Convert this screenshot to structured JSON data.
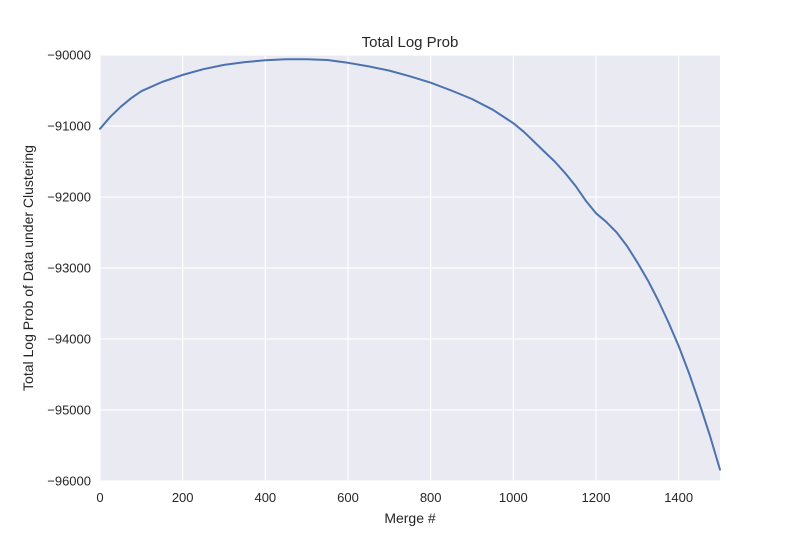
{
  "chart_data": {
    "type": "line",
    "title": "Total Log Prob",
    "xlabel": "Merge #",
    "ylabel": "Total Log Prob of Data under Clustering",
    "xlim": [
      0,
      1500
    ],
    "ylim": [
      -96000,
      -90000
    ],
    "xticks": [
      0,
      200,
      400,
      600,
      800,
      1000,
      1200,
      1400
    ],
    "yticks": [
      -90000,
      -91000,
      -92000,
      -93000,
      -94000,
      -95000,
      -96000
    ],
    "xtick_labels": [
      "0",
      "200",
      "400",
      "600",
      "800",
      "1000",
      "1200",
      "1400"
    ],
    "ytick_labels": [
      "−90000",
      "−91000",
      "−92000",
      "−93000",
      "−94000",
      "−95000",
      "−96000"
    ],
    "grid": true,
    "colors": {
      "background": "#eaeaf2",
      "grid": "#ffffff",
      "line": "#4c72b0"
    },
    "series": [
      {
        "x": [
          0,
          25,
          50,
          75,
          100,
          150,
          200,
          250,
          300,
          350,
          400,
          450,
          500,
          550,
          600,
          650,
          700,
          750,
          800,
          850,
          900,
          950,
          1000,
          1025,
          1050,
          1075,
          1100,
          1125,
          1150,
          1175,
          1200,
          1225,
          1250,
          1275,
          1300,
          1325,
          1350,
          1375,
          1400,
          1425,
          1450,
          1475,
          1500
        ],
        "y": [
          -91040,
          -90870,
          -90730,
          -90610,
          -90510,
          -90380,
          -90280,
          -90200,
          -90140,
          -90100,
          -90075,
          -90060,
          -90060,
          -90070,
          -90110,
          -90160,
          -90220,
          -90300,
          -90390,
          -90500,
          -90620,
          -90770,
          -90960,
          -91080,
          -91220,
          -91360,
          -91500,
          -91660,
          -91840,
          -92050,
          -92230,
          -92350,
          -92500,
          -92690,
          -92920,
          -93170,
          -93450,
          -93760,
          -94100,
          -94480,
          -94900,
          -95350,
          -95840
        ]
      }
    ]
  }
}
